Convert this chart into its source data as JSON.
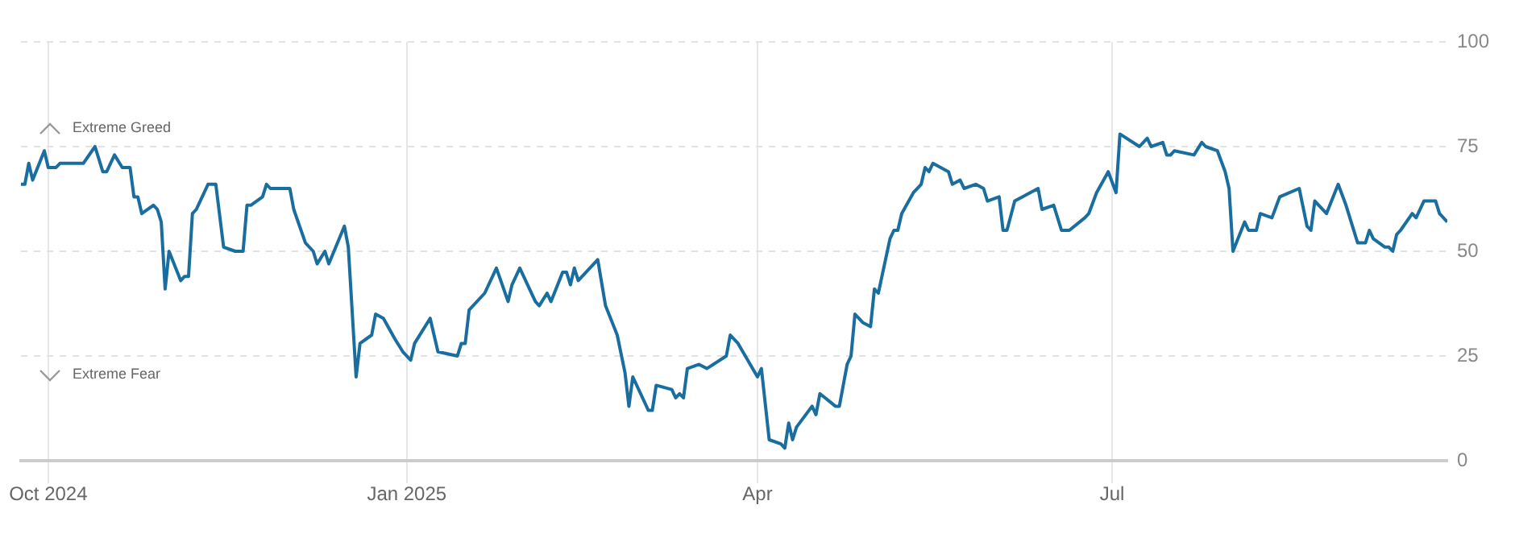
{
  "chart_data": {
    "type": "line",
    "annotations": [
      "Extreme Greed",
      "Extreme Fear"
    ],
    "x": [
      "2024-09-24",
      "2024-09-25",
      "2024-09-26",
      "2024-09-27",
      "2024-09-30",
      "2024-10-01",
      "2024-10-02",
      "2024-10-03",
      "2024-10-04",
      "2024-10-07",
      "2024-10-08",
      "2024-10-10",
      "2024-10-13",
      "2024-10-15",
      "2024-10-16",
      "2024-10-18",
      "2024-10-20",
      "2024-10-22",
      "2024-10-23",
      "2024-10-24",
      "2024-10-25",
      "2024-10-28",
      "2024-10-29",
      "2024-10-30",
      "2024-10-31",
      "2024-11-01",
      "2024-11-04",
      "2024-11-05",
      "2024-11-06",
      "2024-11-07",
      "2024-11-08",
      "2024-11-11",
      "2024-11-13",
      "2024-11-15",
      "2024-11-18",
      "2024-11-20",
      "2024-11-21",
      "2024-11-22",
      "2024-11-25",
      "2024-11-26",
      "2024-11-27",
      "2024-12-02",
      "2024-12-03",
      "2024-12-06",
      "2024-12-08",
      "2024-12-09",
      "2024-12-11",
      "2024-12-12",
      "2024-12-16",
      "2024-12-17",
      "2024-12-19",
      "2024-12-20",
      "2024-12-23",
      "2024-12-24",
      "2024-12-26",
      "2024-12-29",
      "2024-12-31",
      "2025-01-02",
      "2025-01-03",
      "2025-01-07",
      "2025-01-09",
      "2025-01-14",
      "2025-01-15",
      "2025-01-16",
      "2025-01-17",
      "2025-01-21",
      "2025-01-24",
      "2025-01-27",
      "2025-01-28",
      "2025-01-30",
      "2025-02-03",
      "2025-02-04",
      "2025-02-06",
      "2025-02-07",
      "2025-02-10",
      "2025-02-11",
      "2025-02-12",
      "2025-02-13",
      "2025-02-14",
      "2025-02-19",
      "2025-02-21",
      "2025-02-24",
      "2025-02-26",
      "2025-02-27",
      "2025-02-28",
      "2025-03-04",
      "2025-03-05",
      "2025-03-06",
      "2025-03-10",
      "2025-03-11",
      "2025-03-12",
      "2025-03-13",
      "2025-03-14",
      "2025-03-17",
      "2025-03-19",
      "2025-03-24",
      "2025-03-25",
      "2025-03-27",
      "2025-04-01",
      "2025-04-02",
      "2025-04-04",
      "2025-04-07",
      "2025-04-08",
      "2025-04-09",
      "2025-04-10",
      "2025-04-11",
      "2025-04-15",
      "2025-04-16",
      "2025-04-17",
      "2025-04-21",
      "2025-04-22",
      "2025-04-24",
      "2025-04-25",
      "2025-04-26",
      "2025-04-28",
      "2025-04-30",
      "2025-05-01",
      "2025-05-02",
      "2025-05-05",
      "2025-05-06",
      "2025-05-07",
      "2025-05-08",
      "2025-05-11",
      "2025-05-13",
      "2025-05-14",
      "2025-05-15",
      "2025-05-16",
      "2025-05-20",
      "2025-05-21",
      "2025-05-23",
      "2025-05-24",
      "2025-05-27",
      "2025-05-29",
      "2025-05-30",
      "2025-06-02",
      "2025-06-03",
      "2025-06-04",
      "2025-06-06",
      "2025-06-12",
      "2025-06-13",
      "2025-06-16",
      "2025-06-18",
      "2025-06-20",
      "2025-06-24",
      "2025-06-25",
      "2025-06-27",
      "2025-06-30",
      "2025-07-02",
      "2025-07-03",
      "2025-07-08",
      "2025-07-10",
      "2025-07-11",
      "2025-07-14",
      "2025-07-15",
      "2025-07-16",
      "2025-07-17",
      "2025-07-22",
      "2025-07-24",
      "2025-07-25",
      "2025-07-28",
      "2025-07-30",
      "2025-07-31",
      "2025-08-01",
      "2025-08-04",
      "2025-08-05",
      "2025-08-07",
      "2025-08-08",
      "2025-08-11",
      "2025-08-13",
      "2025-08-18",
      "2025-08-20",
      "2025-08-21",
      "2025-08-22",
      "2025-08-25",
      "2025-08-28",
      "2025-08-30",
      "2025-09-02",
      "2025-09-04",
      "2025-09-05",
      "2025-09-06",
      "2025-09-09",
      "2025-09-10",
      "2025-09-11",
      "2025-09-12",
      "2025-09-13",
      "2025-09-16",
      "2025-09-17",
      "2025-09-19",
      "2025-09-22",
      "2025-09-23",
      "2025-09-25"
    ],
    "series": [
      {
        "color": "#1a6e9f",
        "values": [
          66,
          66,
          71,
          67,
          74,
          70,
          70,
          70,
          71,
          71,
          71,
          71,
          75,
          69,
          69,
          73,
          70,
          70,
          63,
          63,
          59,
          61,
          60,
          57,
          41,
          50,
          43,
          44,
          44,
          59,
          60,
          66,
          66,
          51,
          50,
          50,
          61,
          61,
          63,
          66,
          65,
          65,
          60,
          52,
          50,
          47,
          50,
          47,
          56,
          51,
          20,
          28,
          30,
          35,
          34,
          29,
          26,
          24,
          28,
          34,
          26,
          25,
          28,
          28,
          36,
          40,
          46,
          38,
          42,
          46,
          38,
          37,
          40,
          38,
          45,
          45,
          42,
          46,
          43,
          48,
          37,
          30,
          21,
          13,
          20,
          12,
          12,
          18,
          17,
          15,
          16,
          15,
          22,
          23,
          22,
          25,
          30,
          28,
          20,
          22,
          5,
          4,
          3,
          9,
          5,
          8,
          13,
          11,
          16,
          13,
          13,
          23,
          25,
          35,
          33,
          32,
          41,
          40,
          53,
          55,
          55,
          59,
          64,
          66,
          70,
          69,
          71,
          69,
          66,
          67,
          65,
          66,
          65,
          62,
          63,
          55,
          55,
          62,
          65,
          60,
          61,
          55,
          55,
          58,
          59,
          64,
          69,
          64,
          78,
          75,
          77,
          75,
          76,
          73,
          73,
          74,
          73,
          76,
          75,
          74,
          69,
          65,
          50,
          57,
          55,
          55,
          59,
          58,
          63,
          65,
          56,
          55,
          62,
          59,
          66,
          61,
          52,
          52,
          55,
          53,
          51,
          51,
          50,
          54,
          55,
          59,
          58,
          62,
          62,
          59,
          57
        ]
      }
    ],
    "xlim": [
      "2024-09-24",
      "2025-09-25"
    ],
    "xticks": [
      {
        "value": "2024-10-01",
        "label": "Oct 2024"
      },
      {
        "value": "2025-01-01",
        "label": "Jan 2025"
      },
      {
        "value": "2025-04-01",
        "label": "Apr"
      },
      {
        "value": "2025-07-01",
        "label": "Jul"
      }
    ],
    "ylim": [
      0,
      100
    ],
    "yticks": [
      0,
      25,
      50,
      75,
      100
    ],
    "grid": true,
    "legend": false
  }
}
